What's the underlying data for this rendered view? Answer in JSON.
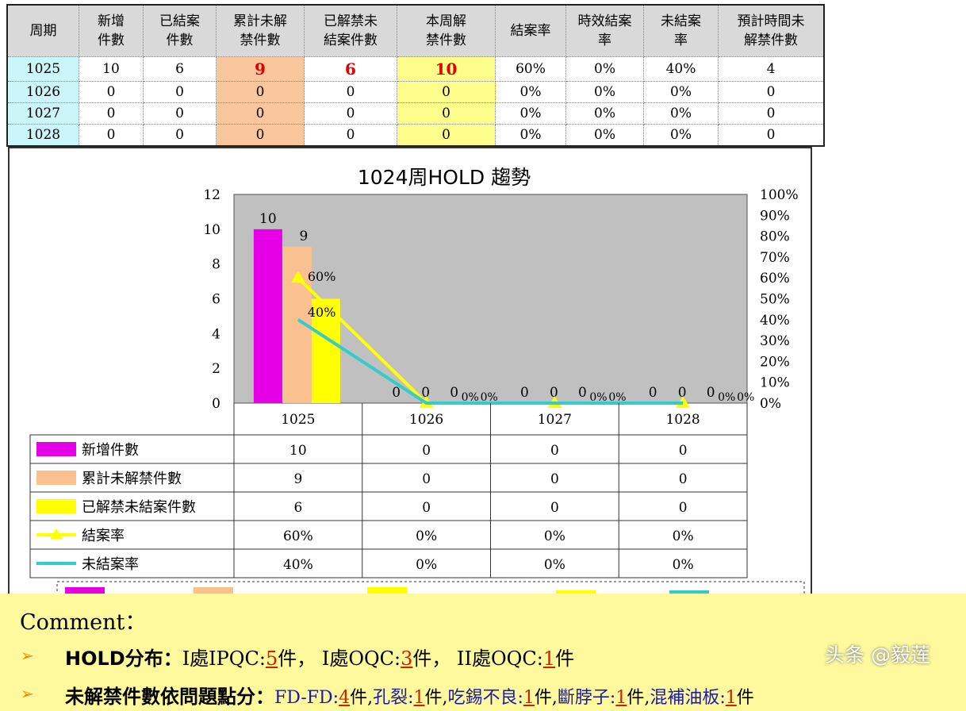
{
  "table": {
    "headers": [
      "周期",
      "新增件數",
      "已結案件數",
      "累計未解禁件數",
      "已解禁未結案件數",
      "本周解禁件數",
      "結案率",
      "時效結案率",
      "未結案率",
      "預計時間未解禁件數"
    ],
    "header_lines": [
      [
        "周期"
      ],
      [
        "新增",
        "件數"
      ],
      [
        "已結案",
        "件數"
      ],
      [
        "累計未解",
        "禁件數"
      ],
      [
        "已解禁未",
        "結案件數"
      ],
      [
        "本周解",
        "禁件數"
      ],
      [
        "結案率"
      ],
      [
        "時效結案",
        "率"
      ],
      [
        "未結案",
        "率"
      ],
      [
        "預計時間未",
        "解禁件數"
      ]
    ],
    "rows": [
      [
        "1025",
        "10",
        "6",
        "9",
        "6",
        "10",
        "60%",
        "0%",
        "40%",
        "4"
      ],
      [
        "1026",
        "0",
        "0",
        "0",
        "0",
        "0",
        "0%",
        "0%",
        "0%",
        "0"
      ],
      [
        "1027",
        "0",
        "0",
        "0",
        "0",
        "0",
        "0%",
        "0%",
        "0%",
        "0"
      ],
      [
        "1028",
        "0",
        "0",
        "0",
        "0",
        "0",
        "0%",
        "0%",
        "0%",
        "0"
      ]
    ]
  },
  "chart_data": {
    "type": "bar",
    "title": "1024周HOLD 趨勢",
    "categories": [
      "1025",
      "1026",
      "1027",
      "1028"
    ],
    "ylim": [
      0,
      12
    ],
    "yticks": [
      "0",
      "2",
      "4",
      "6",
      "8",
      "10",
      "12"
    ],
    "y2lim": [
      0,
      100
    ],
    "y2ticks": [
      "0%",
      "10%",
      "20%",
      "30%",
      "40%",
      "50%",
      "60%",
      "70%",
      "80%",
      "90%",
      "100%"
    ],
    "plot_background": "#c0c0c0",
    "series": [
      {
        "name": "新增件數",
        "kind": "bar",
        "color": "#e600e6",
        "values": [
          10,
          0,
          0,
          0
        ],
        "labels": [
          "10",
          "0",
          "0",
          "0"
        ]
      },
      {
        "name": "累計未解禁件數",
        "kind": "bar",
        "color": "#fac090",
        "values": [
          9,
          0,
          0,
          0
        ],
        "labels": [
          "9",
          "0",
          "0",
          "0"
        ]
      },
      {
        "name": "已解禁未結案件數",
        "kind": "bar",
        "color": "#ffff00",
        "values": [
          6,
          0,
          0,
          0
        ],
        "labels": [
          "6",
          "0",
          "0",
          "0"
        ]
      },
      {
        "name": "結案率",
        "kind": "line",
        "axis": "right",
        "color": "#ffff00",
        "values": [
          60,
          0,
          0,
          0
        ],
        "labels": [
          "60%",
          "0%",
          "0%",
          "0%"
        ]
      },
      {
        "name": "未結案率",
        "kind": "line",
        "axis": "right",
        "color": "#33cccc",
        "values": [
          40,
          0,
          0,
          0
        ],
        "labels": [
          "40%",
          "0%",
          "0%",
          "0%"
        ]
      }
    ],
    "legend": "bottom"
  },
  "comment": {
    "title": "Comment：",
    "line1": {
      "label": "HOLD分布：",
      "parts": [
        [
          "I處IPQC:",
          ""
        ],
        [
          "5",
          "n"
        ],
        [
          "件，  I處OQC:",
          ""
        ],
        [
          "3",
          "n"
        ],
        [
          "件，  II處OQC:",
          ""
        ],
        [
          "1",
          "n"
        ],
        [
          "件",
          ""
        ]
      ]
    },
    "line2": {
      "label": "未解禁件數依問題點分：",
      "parts": [
        [
          "FD-FD:",
          "b"
        ],
        [
          "4",
          "n"
        ],
        [
          "件,",
          "k"
        ],
        [
          "孔裂:",
          "b"
        ],
        [
          "1",
          "n"
        ],
        [
          "件,",
          "k"
        ],
        [
          "吃錫不良:",
          "b"
        ],
        [
          "1",
          "n"
        ],
        [
          "件,",
          "k"
        ],
        [
          "斷脖子:",
          "b"
        ],
        [
          "1",
          "n"
        ],
        [
          "件,",
          "k"
        ],
        [
          "混補油板:",
          "b"
        ],
        [
          "1",
          "n"
        ],
        [
          "件",
          "k"
        ]
      ]
    },
    "bullet": "➢"
  },
  "watermark": "头条 @毅莲"
}
